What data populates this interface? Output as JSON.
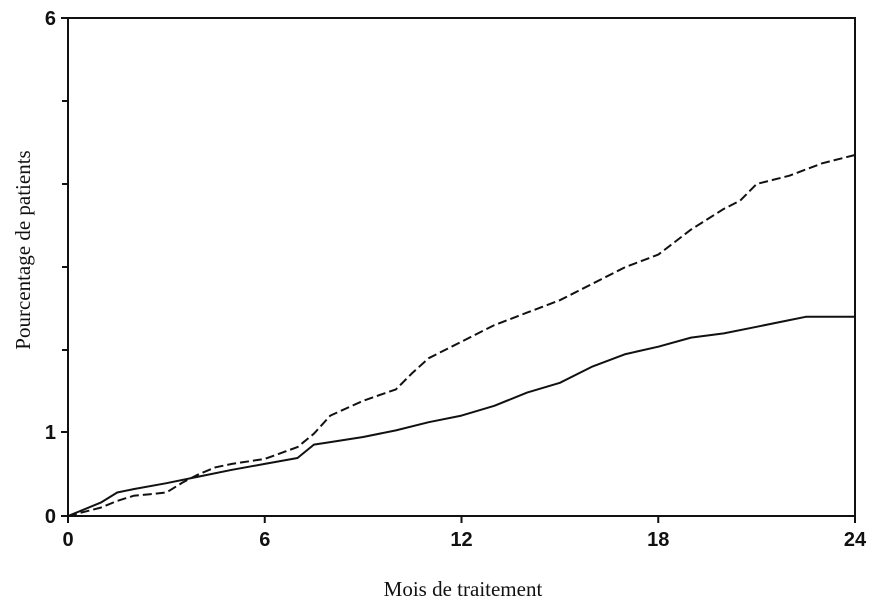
{
  "chart_data": {
    "type": "line",
    "title": "",
    "xlabel": "Mois de traitement",
    "ylabel": "Pourcentage de patients",
    "xlim": [
      0,
      24
    ],
    "ylim": [
      0,
      6
    ],
    "x_ticks": [
      0,
      6,
      12,
      18,
      24
    ],
    "x_tick_labels": [
      "0",
      "6",
      "12",
      "18",
      "24"
    ],
    "y_labeled_ticks": [
      0,
      1,
      6
    ],
    "y_tick_labels": [
      "0",
      "1",
      "6"
    ],
    "y_minor_ticks": [
      2,
      3,
      4,
      5
    ],
    "grid": false,
    "legend": "none",
    "series": [
      {
        "style": "solid",
        "color": "#111111",
        "x": [
          0,
          0.5,
          1.0,
          1.5,
          2.0,
          3.0,
          4.0,
          5.0,
          6.0,
          7.0,
          7.5,
          8.0,
          9.0,
          10.0,
          11.0,
          12.0,
          13.0,
          14.0,
          15.0,
          16.0,
          17.0,
          18.0,
          19.0,
          20.0,
          21.0,
          22.0,
          22.5,
          24.0
        ],
        "y": [
          0,
          0.08,
          0.16,
          0.28,
          0.32,
          0.39,
          0.47,
          0.55,
          0.62,
          0.69,
          0.85,
          0.88,
          0.94,
          1.02,
          1.12,
          1.2,
          1.32,
          1.48,
          1.6,
          1.8,
          1.95,
          2.04,
          2.15,
          2.2,
          2.28,
          2.36,
          2.4,
          2.4
        ]
      },
      {
        "style": "dashed",
        "color": "#111111",
        "x": [
          0,
          0.5,
          1.0,
          1.5,
          2.0,
          2.5,
          3.0,
          3.5,
          4.0,
          4.5,
          5.0,
          6.0,
          7.0,
          7.5,
          8.0,
          9.0,
          10.0,
          10.5,
          11.0,
          12.0,
          13.0,
          14.0,
          15.0,
          16.0,
          17.0,
          18.0,
          19.0,
          20.0,
          20.5,
          21.0,
          22.0,
          23.0,
          24.0
        ],
        "y": [
          0,
          0.05,
          0.1,
          0.18,
          0.24,
          0.26,
          0.28,
          0.4,
          0.5,
          0.58,
          0.62,
          0.68,
          0.82,
          0.98,
          1.2,
          1.38,
          1.52,
          1.72,
          1.9,
          2.1,
          2.3,
          2.45,
          2.6,
          2.8,
          3.0,
          3.15,
          3.45,
          3.7,
          3.8,
          4.0,
          4.1,
          4.25,
          4.35
        ]
      }
    ]
  }
}
